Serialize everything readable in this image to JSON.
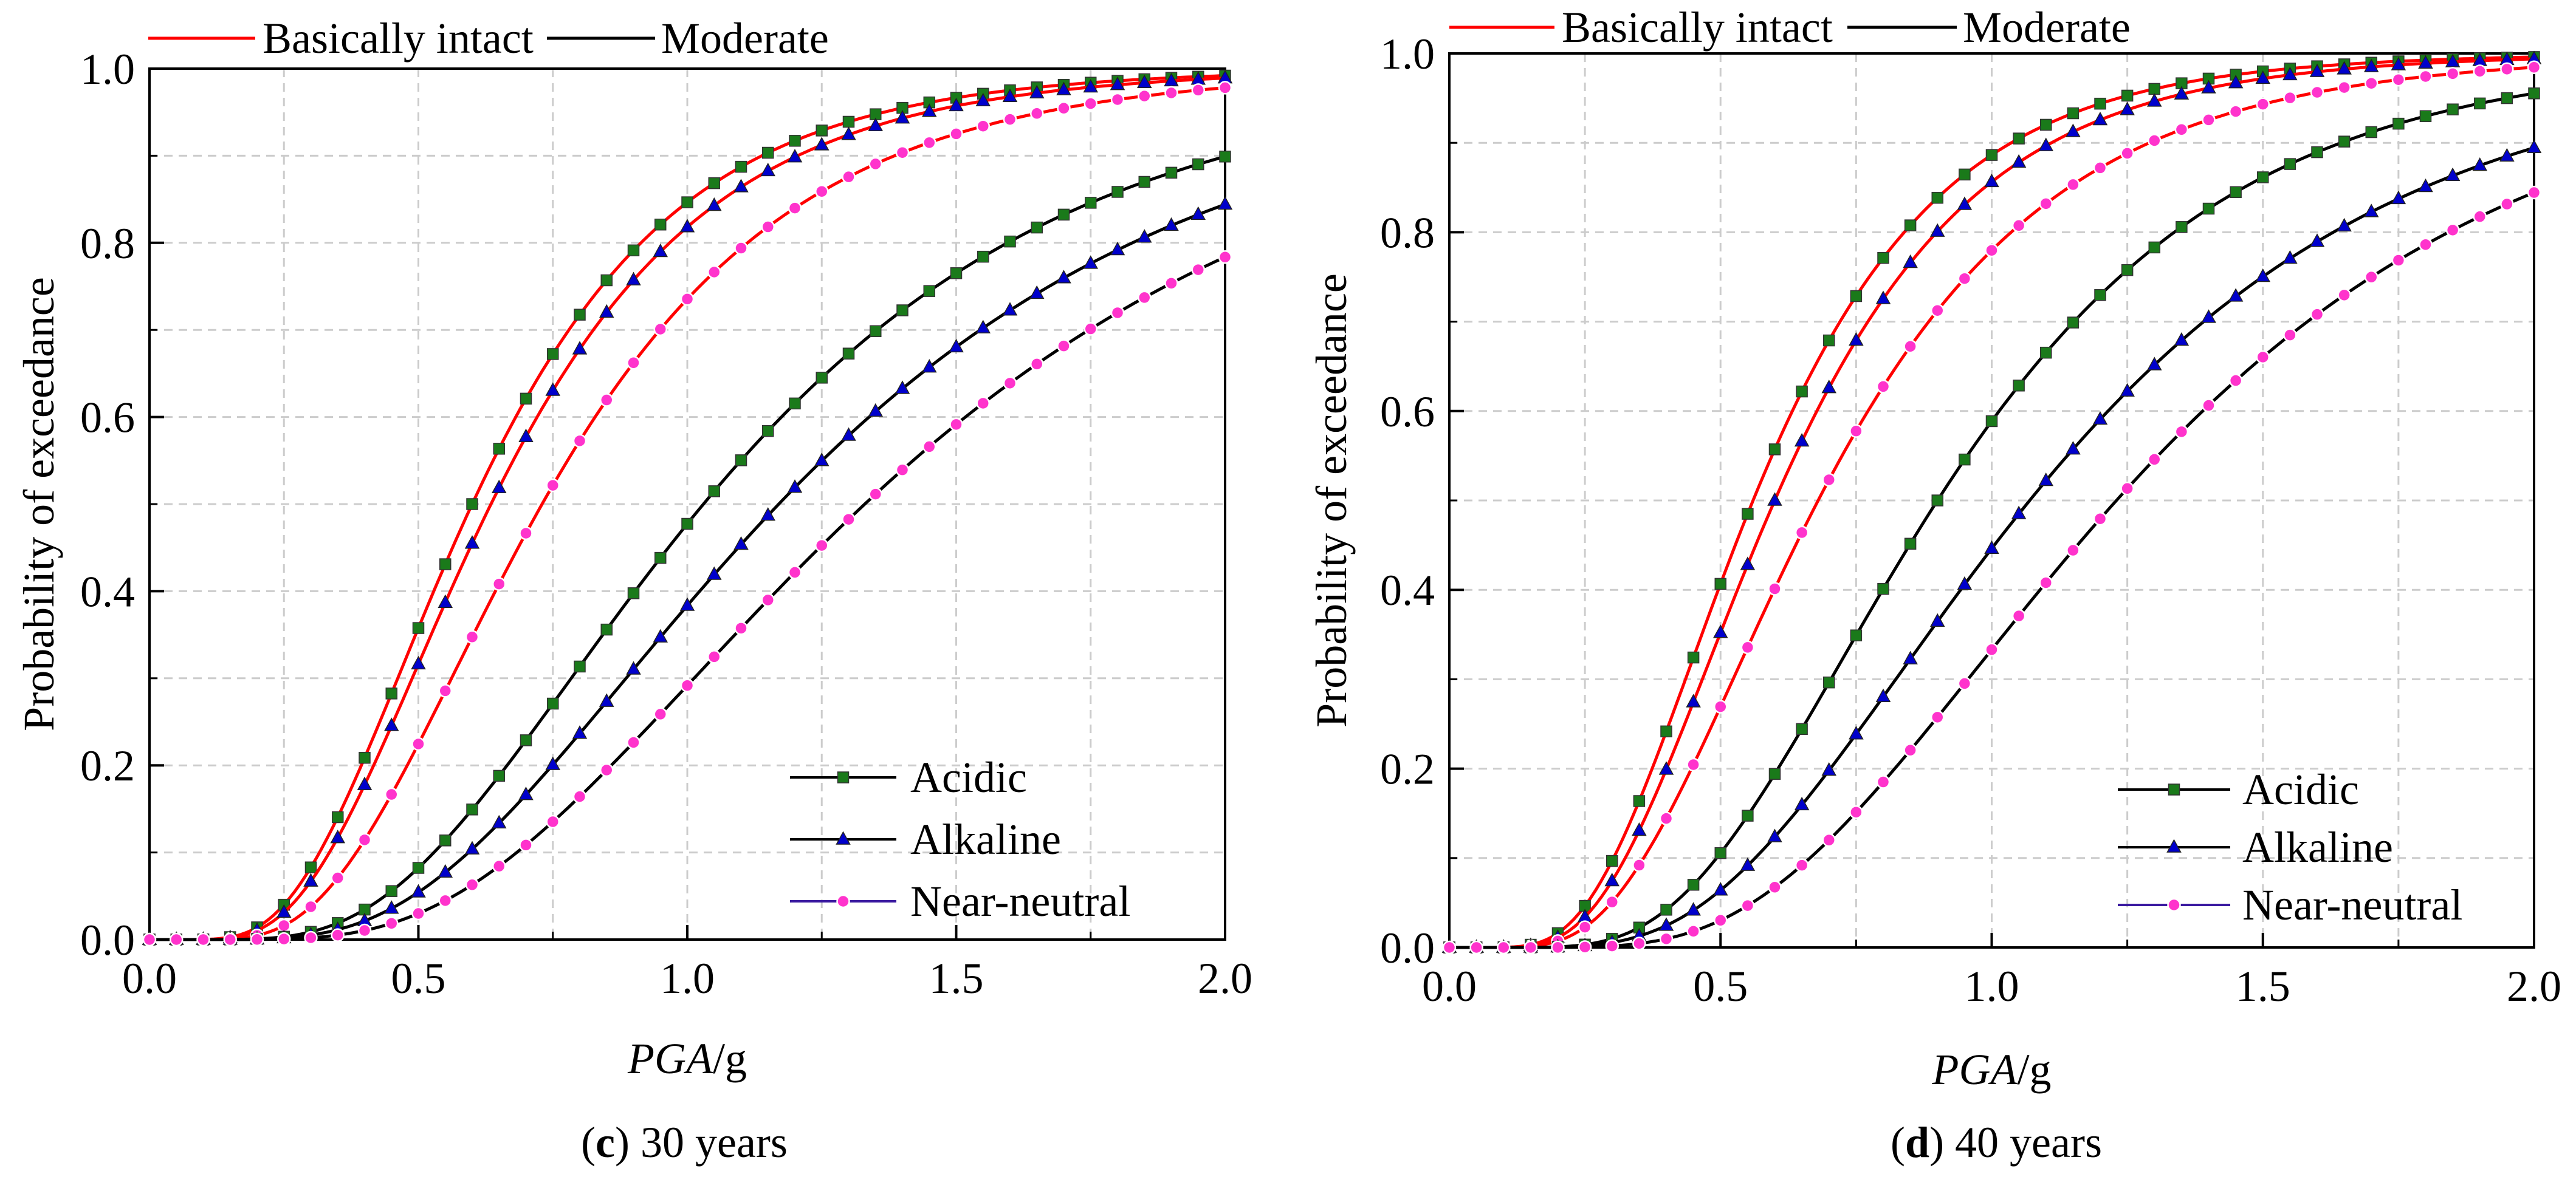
{
  "colors": {
    "basically_intact": "#ff0000",
    "moderate": "#000000",
    "acidic_marker": "#1a7a1a",
    "alkaline_marker": "#0000cc",
    "near_neutral_marker": "#ff33cc",
    "grid": "#cccccc"
  },
  "chart_data": [
    {
      "type": "line",
      "panel_letter": "c",
      "caption": " 30 years",
      "xlabel_italic": "PGA",
      "xlabel_unit": "/g",
      "ylabel": "Probability of exceedance",
      "xlim": [
        0,
        2.0
      ],
      "ylim": [
        0,
        1.0
      ],
      "xticks": [
        "0.0",
        "0.5",
        "1.0",
        "1.5",
        "2.0"
      ],
      "yticks": [
        "0.0",
        "0.2",
        "0.4",
        "0.6",
        "0.8",
        "1.0"
      ],
      "grid": true,
      "legend_states": {
        "items": [
          "Basically intact",
          "Moderate"
        ],
        "placement": "top"
      },
      "legend_conditions": {
        "items": [
          "Acidic",
          "Alkaline",
          "Near-neutral"
        ],
        "placement": "bottom-right"
      },
      "series": [
        {
          "name": "Acidic",
          "state": "Basically intact",
          "median": 0.6,
          "beta": 0.5
        },
        {
          "name": "Alkaline",
          "state": "Basically intact",
          "median": 0.635,
          "beta": 0.5
        },
        {
          "name": "Near-neutral",
          "state": "Basically intact",
          "median": 0.73,
          "beta": 0.5
        },
        {
          "name": "Acidic",
          "state": "Moderate",
          "median": 1.03,
          "beta": 0.52
        },
        {
          "name": "Alkaline",
          "state": "Moderate",
          "median": 1.17,
          "beta": 0.53
        },
        {
          "name": "Near-neutral",
          "state": "Moderate",
          "median": 1.33,
          "beta": 0.52
        }
      ]
    },
    {
      "type": "line",
      "panel_letter": "d",
      "caption": " 40 years",
      "xlabel_italic": "PGA",
      "xlabel_unit": "/g",
      "ylabel": "Probability of exceedance",
      "xlim": [
        0,
        2.0
      ],
      "ylim": [
        0,
        1.0
      ],
      "xticks": [
        "0.0",
        "0.5",
        "1.0",
        "1.5",
        "2.0"
      ],
      "yticks": [
        "0.0",
        "0.2",
        "0.4",
        "0.6",
        "0.8",
        "1.0"
      ],
      "grid": true,
      "legend_states": {
        "items": [
          "Basically intact",
          "Moderate"
        ],
        "placement": "top"
      },
      "legend_conditions": {
        "items": [
          "Acidic",
          "Alkaline",
          "Near-neutral"
        ],
        "placement": "bottom-right"
      },
      "series": [
        {
          "name": "Acidic",
          "state": "Basically intact",
          "median": 0.56,
          "beta": 0.48
        },
        {
          "name": "Alkaline",
          "state": "Basically intact",
          "median": 0.6,
          "beta": 0.48
        },
        {
          "name": "Near-neutral",
          "state": "Basically intact",
          "median": 0.68,
          "beta": 0.5
        },
        {
          "name": "Acidic",
          "state": "Moderate",
          "median": 0.9,
          "beta": 0.47
        },
        {
          "name": "Alkaline",
          "state": "Moderate",
          "median": 1.07,
          "beta": 0.5
        },
        {
          "name": "Near-neutral",
          "state": "Moderate",
          "median": 1.23,
          "beta": 0.48
        }
      ]
    }
  ]
}
